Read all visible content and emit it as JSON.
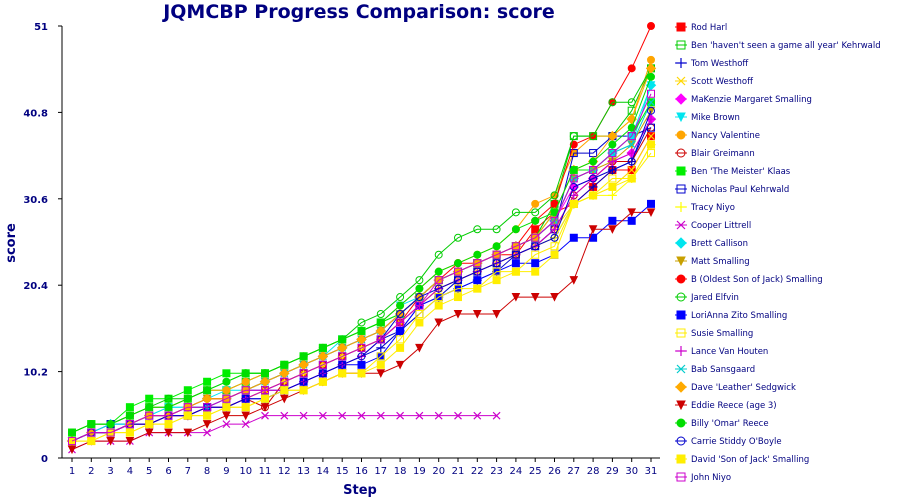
{
  "chart_data": {
    "type": "line",
    "title": "JQMCBP Progress Comparison: score",
    "xlabel": "Step",
    "ylabel": "score",
    "xlim": [
      1,
      31
    ],
    "ylim": [
      0,
      51
    ],
    "yticks": [
      "0",
      "10.2",
      "20.4",
      "30.6",
      "40.8",
      "51"
    ],
    "grid": false,
    "legend_position": "right",
    "series": [
      {
        "name": "Rod Harl",
        "color": "#ff0000",
        "marker": "square-filled",
        "values": [
          2,
          3,
          3,
          4,
          4,
          5,
          5,
          6,
          6,
          7,
          8,
          9,
          10,
          11,
          12,
          13,
          14,
          16,
          19,
          21,
          22,
          23,
          24,
          24,
          27,
          29,
          30,
          32,
          34,
          34,
          38
        ]
      },
      {
        "name": "Ben 'haven't seen a game all year' Kehrwald",
        "color": "#00cc00",
        "marker": "square-open",
        "values": [
          3,
          4,
          4,
          5,
          6,
          6,
          7,
          8,
          8,
          9,
          10,
          11,
          12,
          13,
          14,
          15,
          16,
          17,
          19,
          21,
          22,
          23,
          24,
          25,
          26,
          30,
          38,
          38,
          38,
          41,
          46
        ]
      },
      {
        "name": "Tom Westhoff",
        "color": "#0000cc",
        "marker": "plus",
        "values": [
          2,
          3,
          3,
          4,
          4,
          5,
          5,
          6,
          6,
          7,
          8,
          8,
          9,
          10,
          11,
          12,
          13,
          15,
          18,
          19,
          20,
          21,
          22,
          24,
          25,
          26,
          30,
          32,
          34,
          35,
          40
        ]
      },
      {
        "name": "Scott Westhoff",
        "color": "#ffd700",
        "marker": "x",
        "values": [
          2,
          3,
          3,
          4,
          4,
          5,
          5,
          6,
          6,
          7,
          8,
          9,
          10,
          11,
          12,
          13,
          14,
          16,
          18,
          20,
          21,
          22,
          23,
          24,
          25,
          27,
          30,
          31,
          32,
          34,
          38
        ]
      },
      {
        "name": "MaKenzie Margaret Smalling",
        "color": "#ff00ff",
        "marker": "diamond-filled",
        "values": [
          2,
          3,
          3,
          4,
          5,
          5,
          6,
          7,
          7,
          8,
          9,
          10,
          11,
          12,
          13,
          14,
          15,
          17,
          19,
          21,
          22,
          23,
          24,
          25,
          26,
          28,
          32,
          33,
          35,
          36,
          40
        ]
      },
      {
        "name": "Mike Brown",
        "color": "#00e5ee",
        "marker": "triangle-down",
        "values": [
          2,
          3,
          4,
          4,
          5,
          6,
          6,
          7,
          8,
          8,
          9,
          10,
          11,
          12,
          14,
          15,
          16,
          18,
          19,
          21,
          22,
          23,
          24,
          25,
          26,
          28,
          33,
          34,
          36,
          37,
          44
        ]
      },
      {
        "name": "Nancy Valentine",
        "color": "#ffa500",
        "marker": "circle-filled",
        "values": [
          3,
          4,
          4,
          5,
          6,
          6,
          7,
          8,
          8,
          9,
          10,
          11,
          12,
          13,
          14,
          15,
          16,
          18,
          20,
          22,
          23,
          24,
          25,
          27,
          30,
          31,
          36,
          38,
          38,
          40,
          47
        ]
      },
      {
        "name": "Blair Greimann",
        "color": "#cc0000",
        "marker": "circle-open",
        "values": [
          2,
          3,
          3,
          4,
          4,
          5,
          5,
          6,
          6,
          7,
          6,
          9,
          10,
          11,
          12,
          13,
          14,
          16,
          18,
          20,
          21,
          22,
          23,
          24,
          25,
          27,
          31,
          33,
          35,
          35,
          39
        ]
      },
      {
        "name": "Ben 'The Meister' Klaas",
        "color": "#00ee00",
        "marker": "square-filled",
        "values": [
          3,
          4,
          4,
          6,
          7,
          7,
          8,
          9,
          10,
          10,
          10,
          11,
          12,
          13,
          14,
          15,
          16,
          17,
          19,
          21,
          22,
          23,
          24,
          25,
          26,
          29,
          34,
          34,
          36,
          38,
          42
        ]
      },
      {
        "name": "Nicholas Paul Kehrwald",
        "color": "#0000cc",
        "marker": "square-open",
        "values": [
          2,
          3,
          4,
          4,
          5,
          5,
          6,
          6,
          7,
          8,
          8,
          9,
          10,
          11,
          12,
          13,
          14,
          15,
          17,
          19,
          21,
          22,
          23,
          24,
          25,
          27,
          36,
          36,
          38,
          38,
          39
        ]
      },
      {
        "name": "Tracy Niyo",
        "color": "#ffff00",
        "marker": "plus",
        "values": [
          2,
          3,
          3,
          4,
          4,
          5,
          5,
          6,
          6,
          7,
          8,
          9,
          10,
          11,
          12,
          13,
          14,
          16,
          18,
          20,
          21,
          22,
          23,
          24,
          25,
          26,
          30,
          31,
          31,
          33,
          37
        ]
      },
      {
        "name": "Cooper Littrell",
        "color": "#cc00cc",
        "marker": "x",
        "values": [
          1,
          2,
          2,
          2,
          3,
          3,
          3,
          3,
          4,
          4,
          5,
          5,
          5,
          5,
          5,
          5,
          5,
          5,
          5,
          5,
          5,
          5,
          5
        ]
      },
      {
        "name": "Brett Callison",
        "color": "#00e5ee",
        "marker": "diamond-filled",
        "values": [
          2,
          3,
          4,
          4,
          5,
          6,
          6,
          7,
          7,
          8,
          9,
          10,
          11,
          12,
          13,
          14,
          15,
          17,
          19,
          21,
          22,
          23,
          24,
          25,
          26,
          28,
          33,
          34,
          36,
          38,
          44
        ]
      },
      {
        "name": "Matt Smalling",
        "color": "#c8a000",
        "marker": "triangle-down",
        "values": [
          2,
          3,
          3,
          4,
          5,
          5,
          6,
          7,
          7,
          8,
          9,
          10,
          11,
          12,
          13,
          14,
          15,
          17,
          19,
          21,
          22,
          23,
          24,
          25,
          26,
          28,
          33,
          34,
          35,
          37,
          41
        ]
      },
      {
        "name": "B (Oldest Son of Jack) Smalling",
        "color": "#ff0000",
        "marker": "circle-filled",
        "values": [
          2,
          3,
          3,
          4,
          5,
          5,
          6,
          7,
          7,
          8,
          9,
          10,
          11,
          12,
          13,
          14,
          15,
          17,
          19,
          21,
          23,
          23,
          24,
          25,
          28,
          30,
          37,
          38,
          42,
          46,
          51
        ]
      },
      {
        "name": "Jared Elfvin",
        "color": "#00cc00",
        "marker": "circle-open",
        "values": [
          3,
          4,
          4,
          5,
          6,
          7,
          7,
          8,
          9,
          10,
          10,
          11,
          12,
          13,
          14,
          16,
          17,
          19,
          21,
          24,
          26,
          27,
          27,
          29,
          29,
          31,
          38,
          38,
          42,
          42,
          46
        ]
      },
      {
        "name": "LoriAnna Zito Smalling",
        "color": "#0000ff",
        "marker": "square-filled",
        "values": [
          2,
          3,
          3,
          4,
          4,
          5,
          5,
          6,
          6,
          7,
          7,
          8,
          9,
          10,
          11,
          11,
          12,
          15,
          18,
          19,
          20,
          21,
          22,
          23,
          23,
          24,
          26,
          26,
          28,
          28,
          30
        ]
      },
      {
        "name": "Susie Smalling",
        "color": "#ffee00",
        "marker": "square-open",
        "values": [
          2,
          2,
          3,
          3,
          4,
          4,
          5,
          5,
          6,
          6,
          7,
          8,
          8,
          9,
          10,
          10,
          12,
          14,
          17,
          19,
          20,
          20,
          22,
          22,
          24,
          25,
          30,
          31,
          33,
          33,
          36
        ]
      },
      {
        "name": "Lance Van Houten",
        "color": "#cc00cc",
        "marker": "plus",
        "values": [
          2,
          3,
          3,
          4,
          4,
          5,
          5,
          6,
          6,
          7,
          8,
          8,
          9,
          10,
          11,
          12,
          14,
          16,
          18,
          20,
          21,
          22,
          23,
          24,
          25,
          27,
          31,
          33,
          35,
          36,
          40
        ]
      },
      {
        "name": "Bab Sansgaard",
        "color": "#00cccc",
        "marker": "x",
        "values": [
          2,
          3,
          3,
          4,
          5,
          5,
          6,
          6,
          7,
          8,
          9,
          10,
          11,
          12,
          13,
          14,
          15,
          17,
          19,
          21,
          22,
          23,
          24,
          25,
          26,
          28,
          33,
          34,
          36,
          37,
          42
        ]
      },
      {
        "name": "Dave 'Leather' Sedgwick",
        "color": "#ffaa00",
        "marker": "diamond-filled",
        "values": [
          2,
          3,
          3,
          4,
          5,
          5,
          6,
          7,
          7,
          8,
          9,
          10,
          11,
          12,
          13,
          14,
          15,
          17,
          19,
          21,
          22,
          23,
          24,
          25,
          26,
          29,
          34,
          35,
          38,
          40,
          46
        ]
      },
      {
        "name": "Eddie Reece (age 3)",
        "color": "#cc0000",
        "marker": "triangle-down",
        "values": [
          1,
          2,
          2,
          2,
          3,
          3,
          3,
          4,
          5,
          5,
          6,
          7,
          8,
          9,
          10,
          10,
          10,
          11,
          13,
          16,
          17,
          17,
          17,
          19,
          19,
          19,
          21,
          27,
          27,
          29,
          29
        ]
      },
      {
        "name": "Billy 'Omar' Reece",
        "color": "#00dd00",
        "marker": "circle-filled",
        "values": [
          3,
          4,
          4,
          5,
          6,
          6,
          7,
          8,
          9,
          10,
          10,
          11,
          12,
          13,
          14,
          15,
          16,
          18,
          20,
          22,
          23,
          24,
          25,
          27,
          28,
          29,
          34,
          35,
          37,
          39,
          45
        ]
      },
      {
        "name": "Carrie Stiddy O'Boyle",
        "color": "#0000cc",
        "marker": "circle-open",
        "values": [
          2,
          3,
          3,
          4,
          4,
          5,
          5,
          6,
          6,
          7,
          7,
          8,
          9,
          10,
          11,
          12,
          14,
          17,
          19,
          20,
          21,
          22,
          23,
          24,
          25,
          26,
          32,
          33,
          34,
          35,
          41
        ]
      },
      {
        "name": "David 'Son of Jack' Smalling",
        "color": "#ffee00",
        "marker": "square-filled",
        "values": [
          2,
          2,
          3,
          3,
          4,
          4,
          5,
          5,
          6,
          6,
          7,
          8,
          8,
          9,
          10,
          10,
          11,
          13,
          16,
          18,
          19,
          20,
          21,
          22,
          22,
          24,
          30,
          31,
          32,
          33,
          37
        ]
      },
      {
        "name": "John Niyo",
        "color": "#cc00cc",
        "marker": "square-open",
        "values": [
          2,
          3,
          3,
          4,
          5,
          5,
          6,
          6,
          7,
          8,
          8,
          9,
          10,
          11,
          12,
          13,
          14,
          16,
          18,
          21,
          22,
          23,
          24,
          25,
          26,
          28,
          33,
          34,
          36,
          38,
          43
        ]
      }
    ]
  }
}
